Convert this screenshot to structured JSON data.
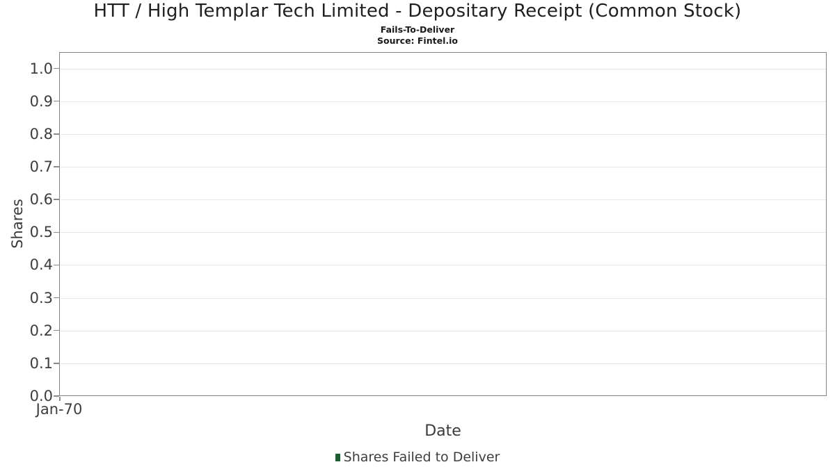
{
  "chart_data": {
    "type": "bar",
    "title": "HTT / High Templar Tech Limited - Depositary Receipt (Common Stock)",
    "subtitle": "Fails-To-Deliver",
    "source": "Source: Fintel.io",
    "xlabel": "Date",
    "ylabel": "Shares",
    "xticks": [
      "Jan-70"
    ],
    "yticks": [
      "0.0",
      "0.1",
      "0.2",
      "0.3",
      "0.4",
      "0.5",
      "0.6",
      "0.7",
      "0.8",
      "0.9",
      "1.0"
    ],
    "ylim": [
      0,
      1.05
    ],
    "grid": "horizontal-only",
    "plot_background": "#ffffff",
    "legend": {
      "position": "bottom-center",
      "entries": [
        {
          "label": "Shares Failed to Deliver",
          "color": "#1f5c31",
          "marker": "square"
        }
      ]
    },
    "series": [
      {
        "name": "Shares Failed to Deliver",
        "x": [],
        "values": []
      }
    ]
  },
  "colors": {
    "title_text": "#1f1f1f",
    "axis_text": "#3d3d3d",
    "gridline": "#e8e8e8",
    "plot_border": "#838383",
    "tick_mark": "#8a8a8a",
    "legend_green": "#1f5c31"
  }
}
